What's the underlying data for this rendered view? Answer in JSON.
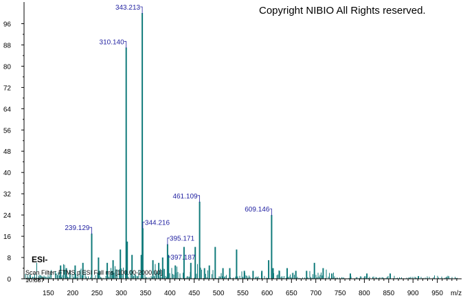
{
  "copyright": "Copyright NIBIO All Rights reserved.",
  "ion_mode": "ESI-",
  "scan_filter": "Scan Filter: FTMS p ESI Full ms [100.00-2000.00]",
  "base_intensity": "10.887",
  "colors": {
    "peaks": "#0f7a7a",
    "labels": "#1f1fa0",
    "axis": "#000000"
  },
  "chart_data": {
    "type": "bar",
    "xlabel": "m/z",
    "xlim": [
      100,
      1000
    ],
    "ylim": [
      0,
      102
    ],
    "x_ticks": [
      150,
      200,
      250,
      300,
      350,
      400,
      450,
      500,
      550,
      600,
      650,
      700,
      750,
      800,
      850,
      900,
      950
    ],
    "y_ticks": [
      0,
      8,
      16,
      24,
      32,
      40,
      48,
      56,
      64,
      72,
      80,
      88,
      96
    ],
    "grid": false,
    "peaks": [
      {
        "mz": 343.213,
        "intensity": 100,
        "label": "343.213"
      },
      {
        "mz": 310.14,
        "intensity": 87,
        "label": "310.140"
      },
      {
        "mz": 461.109,
        "intensity": 29,
        "label": "461.109"
      },
      {
        "mz": 609.146,
        "intensity": 24,
        "label": "609.146"
      },
      {
        "mz": 344.216,
        "intensity": 19,
        "label": "344.216"
      },
      {
        "mz": 239.129,
        "intensity": 17,
        "label": "239.129"
      },
      {
        "mz": 395.171,
        "intensity": 13,
        "label": "395.171"
      },
      {
        "mz": 397.187,
        "intensity": 9,
        "label": "397.187"
      },
      {
        "mz": 312.15,
        "intensity": 14
      },
      {
        "mz": 341.2,
        "intensity": 9
      },
      {
        "mz": 322.1,
        "intensity": 9
      },
      {
        "mz": 298.1,
        "intensity": 11
      },
      {
        "mz": 429.11,
        "intensity": 12
      },
      {
        "mz": 452.1,
        "intensity": 12
      },
      {
        "mz": 493.15,
        "intensity": 12
      },
      {
        "mz": 537.15,
        "intensity": 11
      },
      {
        "mz": 603.1,
        "intensity": 7
      },
      {
        "mz": 612.15,
        "intensity": 4
      },
      {
        "mz": 697.2,
        "intensity": 6
      },
      {
        "mz": 715.2,
        "intensity": 4
      },
      {
        "mz": 175.1,
        "intensity": 5
      },
      {
        "mz": 187.1,
        "intensity": 4
      },
      {
        "mz": 205.1,
        "intensity": 5
      },
      {
        "mz": 221.1,
        "intensity": 6
      },
      {
        "mz": 253.1,
        "intensity": 8
      },
      {
        "mz": 271.1,
        "intensity": 6
      },
      {
        "mz": 283.1,
        "intensity": 7
      },
      {
        "mz": 365.1,
        "intensity": 7
      },
      {
        "mz": 377.1,
        "intensity": 6
      },
      {
        "mz": 385.1,
        "intensity": 8
      },
      {
        "mz": 411.1,
        "intensity": 5
      },
      {
        "mz": 443.1,
        "intensity": 6
      },
      {
        "mz": 471.1,
        "intensity": 4
      },
      {
        "mz": 481.1,
        "intensity": 5
      },
      {
        "mz": 509.1,
        "intensity": 4
      },
      {
        "mz": 523.1,
        "intensity": 4
      },
      {
        "mz": 553.1,
        "intensity": 3
      },
      {
        "mz": 571.1,
        "intensity": 3
      },
      {
        "mz": 589.1,
        "intensity": 3
      },
      {
        "mz": 625.1,
        "intensity": 3
      },
      {
        "mz": 641.1,
        "intensity": 4
      },
      {
        "mz": 659.1,
        "intensity": 3
      },
      {
        "mz": 681.1,
        "intensity": 3
      },
      {
        "mz": 733.1,
        "intensity": 2
      },
      {
        "mz": 771.1,
        "intensity": 2
      },
      {
        "mz": 805.1,
        "intensity": 2
      },
      {
        "mz": 853.1,
        "intensity": 2
      },
      {
        "mz": 911.1,
        "intensity": 1
      }
    ]
  }
}
